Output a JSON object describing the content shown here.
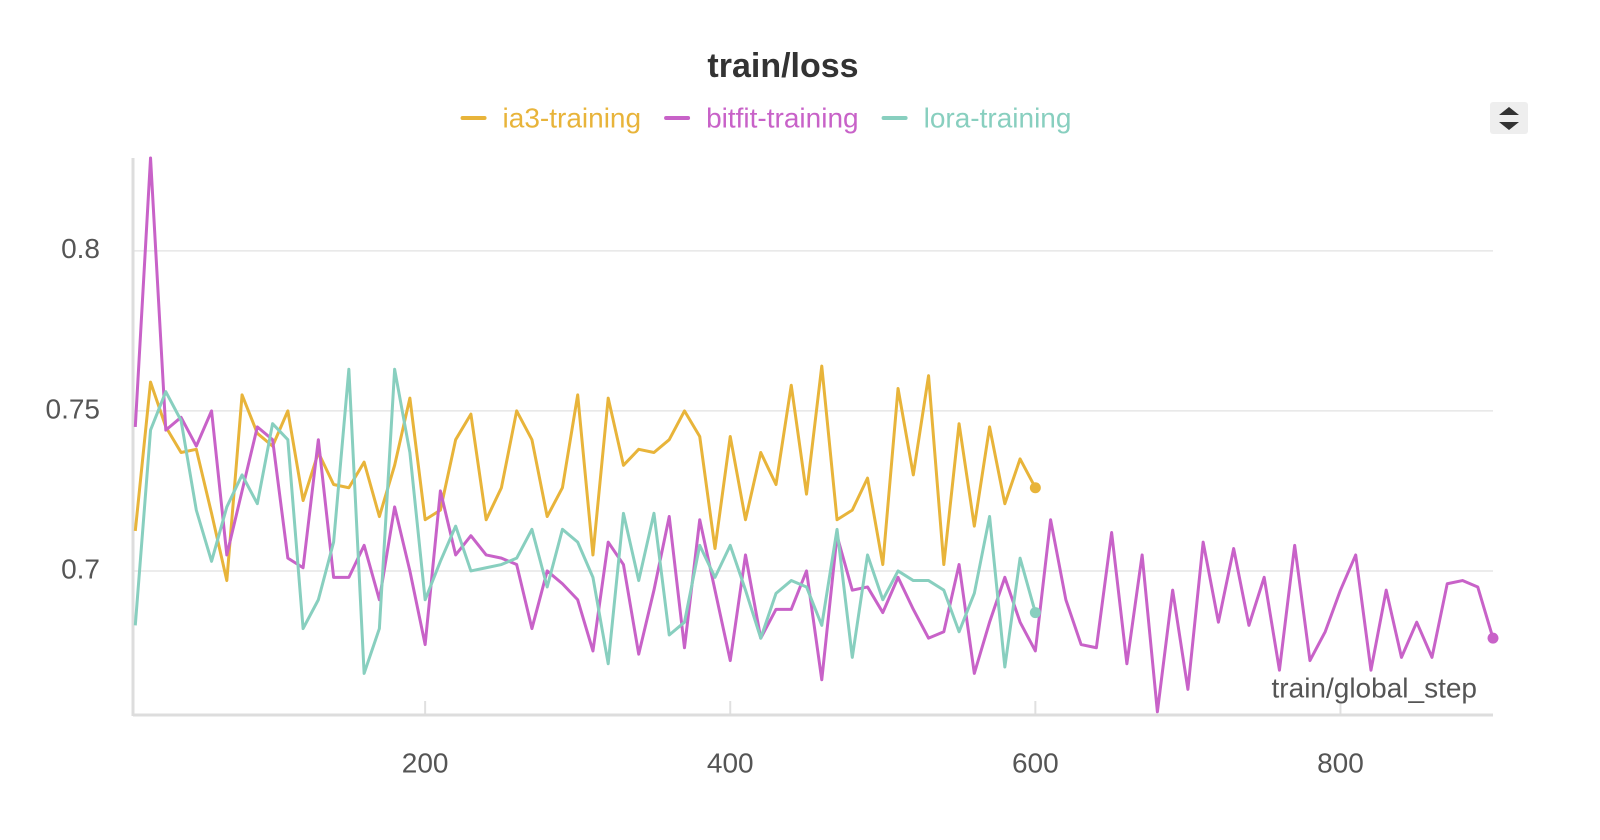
{
  "chart_data": {
    "type": "line",
    "title": "train/loss",
    "x_label": "train/global_step",
    "x": [
      10,
      20,
      30,
      40,
      50,
      60,
      70,
      80,
      90,
      100,
      110,
      120,
      130,
      140,
      150,
      160,
      170,
      180,
      190,
      200,
      210,
      220,
      230,
      240,
      250,
      260,
      270,
      280,
      290,
      300,
      310,
      320,
      330,
      340,
      350,
      360,
      370,
      380,
      390,
      400,
      410,
      420,
      430,
      440,
      450,
      460,
      470,
      480,
      490,
      500,
      510,
      520,
      530,
      540,
      550,
      560,
      570,
      580,
      590,
      600,
      610,
      620,
      630,
      640,
      650,
      660,
      670,
      680,
      690,
      700,
      710,
      720,
      730,
      740,
      750,
      760,
      770,
      780,
      790,
      800,
      810,
      820,
      830,
      840,
      850,
      860,
      870,
      880,
      890,
      900
    ],
    "series": [
      {
        "name": "ia3-training",
        "color": "#e8b43a",
        "values": [
          0.7125,
          0.759,
          0.745,
          0.737,
          0.738,
          0.718,
          0.697,
          0.755,
          0.743,
          0.739,
          0.75,
          0.722,
          0.737,
          0.727,
          0.726,
          0.734,
          0.717,
          0.733,
          0.754,
          0.716,
          0.719,
          0.741,
          0.749,
          0.716,
          0.726,
          0.75,
          0.741,
          0.717,
          0.726,
          0.755,
          0.705,
          0.754,
          0.733,
          0.738,
          0.737,
          0.741,
          0.75,
          0.742,
          0.707,
          0.742,
          0.716,
          0.737,
          0.727,
          0.758,
          0.724,
          0.764,
          0.716,
          0.719,
          0.729,
          0.702,
          0.757,
          0.73,
          0.761,
          0.702,
          0.746,
          0.714,
          0.745,
          0.721,
          0.735,
          0.726,
          null,
          null,
          null,
          null,
          null,
          null,
          null,
          null,
          null,
          null,
          null,
          null,
          null,
          null,
          null,
          null,
          null,
          null,
          null,
          null,
          null,
          null,
          null,
          null,
          null,
          null,
          null,
          null,
          null,
          null
        ]
      },
      {
        "name": "bitfit-training",
        "color": "#c862c8",
        "values": [
          0.745,
          0.829,
          0.744,
          0.748,
          0.739,
          0.75,
          0.705,
          0.725,
          0.745,
          0.741,
          0.704,
          0.701,
          0.741,
          0.698,
          0.698,
          0.708,
          0.691,
          0.72,
          0.7,
          0.677,
          0.725,
          0.705,
          0.711,
          0.705,
          0.704,
          0.702,
          0.682,
          0.7,
          0.696,
          0.691,
          0.675,
          0.709,
          0.702,
          0.674,
          0.694,
          0.717,
          0.676,
          0.716,
          0.694,
          0.672,
          0.705,
          0.679,
          0.688,
          0.688,
          0.7,
          0.666,
          0.711,
          0.694,
          0.695,
          0.687,
          0.698,
          0.688,
          0.679,
          0.681,
          0.702,
          0.668,
          0.684,
          0.698,
          0.684,
          0.675,
          0.716,
          0.691,
          0.677,
          0.676,
          0.712,
          0.671,
          0.705,
          0.656,
          0.694,
          0.663,
          0.709,
          0.684,
          0.707,
          0.683,
          0.698,
          0.669,
          0.708,
          0.672,
          0.681,
          0.694,
          0.705,
          0.669,
          0.694,
          0.673,
          0.684,
          0.673,
          0.696,
          0.697,
          0.695,
          0.679
        ]
      },
      {
        "name": "lora-training",
        "color": "#88cfbf",
        "values": [
          0.683,
          0.744,
          0.756,
          0.747,
          0.719,
          0.703,
          0.72,
          0.73,
          0.721,
          0.746,
          0.741,
          0.682,
          0.691,
          0.709,
          0.763,
          0.668,
          0.682,
          0.763,
          0.737,
          0.691,
          0.703,
          0.714,
          0.7,
          0.701,
          0.702,
          0.704,
          0.713,
          0.695,
          0.713,
          0.709,
          0.698,
          0.671,
          0.718,
          0.697,
          0.718,
          0.68,
          0.684,
          0.708,
          0.698,
          0.708,
          0.694,
          0.679,
          0.693,
          0.697,
          0.695,
          0.683,
          0.713,
          0.673,
          0.705,
          0.691,
          0.7,
          0.697,
          0.697,
          0.694,
          0.681,
          0.693,
          0.717,
          0.67,
          0.704,
          0.687,
          null,
          null,
          null,
          null,
          null,
          null,
          null,
          null,
          null,
          null,
          null,
          null,
          null,
          null,
          null,
          null,
          null,
          null,
          null,
          null,
          null,
          null,
          null,
          null,
          null,
          null,
          null,
          null,
          null,
          null
        ]
      }
    ],
    "xlim": [
      8.5,
      900
    ],
    "xticks": [
      200,
      400,
      600,
      800
    ],
    "ylim": [
      0.655,
      0.829
    ],
    "yticks": [
      0.7,
      0.75,
      0.8
    ],
    "grid": true,
    "legend": "top"
  }
}
